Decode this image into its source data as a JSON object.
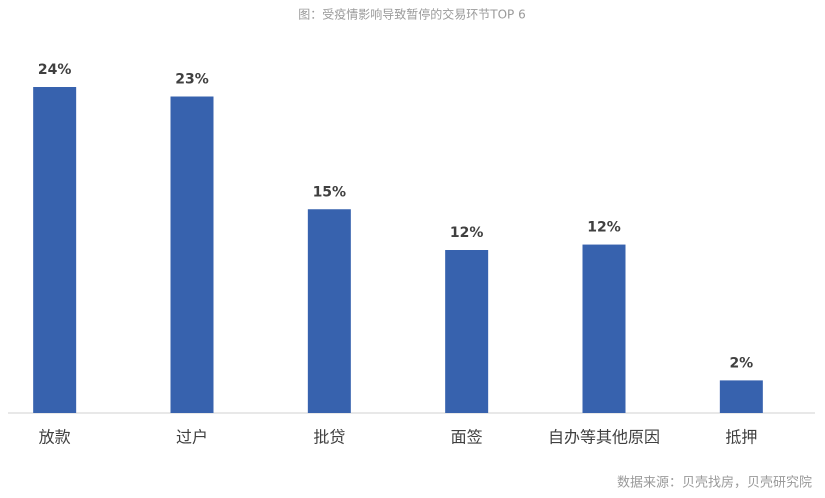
{
  "chart_data": {
    "type": "bar",
    "title": "图：受疫情影响导致暂停的交易环节TOP 6",
    "source": "数据来源：贝壳找房，贝壳研究院",
    "categories": [
      "放款",
      "过户",
      "批贷",
      "面签",
      "自办等其他原因",
      "抵押"
    ],
    "values": [
      24,
      23.3,
      15,
      12,
      12.4,
      2.4
    ],
    "value_labels": [
      "24%",
      "23%",
      "15%",
      "12%",
      "12%",
      "2%"
    ],
    "color": "#3762ae"
  }
}
